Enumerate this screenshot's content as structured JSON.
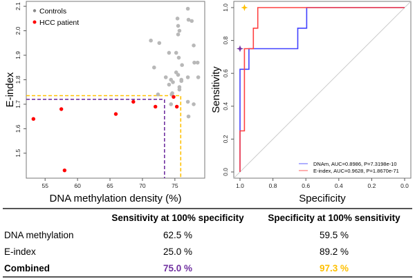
{
  "chart_data": [
    {
      "type": "scatter",
      "xlabel": "DNA methylation density (%)",
      "ylabel": "E-index",
      "xlim": [
        52.1,
        79.6
      ],
      "ylim": [
        1.398,
        2.12
      ],
      "xticks": [
        55,
        60,
        65,
        70,
        75
      ],
      "yticks": [
        1.5,
        1.6,
        1.7,
        1.8,
        1.9,
        2.0,
        2.1
      ],
      "grid": false,
      "legend_position": "top-left",
      "series": [
        {
          "name": "Controls",
          "color": "#b8b8b8",
          "points": [
            [
              71.3,
              1.96
            ],
            [
              72.6,
              1.95
            ],
            [
              74.1,
              1.91
            ],
            [
              75.2,
              1.91
            ],
            [
              75.6,
              1.89
            ],
            [
              77.9,
              1.94
            ],
            [
              76.1,
              1.86
            ],
            [
              78.0,
              1.87
            ],
            [
              78.5,
              1.87
            ],
            [
              71.8,
              1.85
            ],
            [
              73.6,
              1.81
            ],
            [
              75.2,
              1.83
            ],
            [
              75.5,
              1.82
            ],
            [
              77.0,
              1.81
            ],
            [
              78.6,
              1.81
            ],
            [
              74.4,
              1.8
            ],
            [
              74.7,
              1.79
            ],
            [
              76.0,
              1.8
            ],
            [
              76.0,
              1.795
            ],
            [
              74.1,
              1.78
            ],
            [
              75.7,
              1.77
            ],
            [
              75.7,
              1.76
            ],
            [
              72.4,
              1.74
            ],
            [
              74.5,
              1.74
            ],
            [
              74.6,
              1.745
            ],
            [
              74.4,
              1.7
            ],
            [
              77.0,
              1.71
            ],
            [
              77.9,
              1.7
            ],
            [
              77.1,
              1.65
            ],
            [
              77.0,
              2.09
            ],
            [
              75.4,
              2.05
            ],
            [
              77.1,
              2.045
            ],
            [
              77.6,
              2.04
            ],
            [
              75.5,
              2.02
            ],
            [
              75.7,
              2.0
            ],
            [
              75.5,
              1.985
            ]
          ]
        },
        {
          "name": "HCC patient",
          "color": "#ff0000",
          "points": [
            [
              53.2,
              1.64
            ],
            [
              57.5,
              1.68
            ],
            [
              58.0,
              1.43
            ],
            [
              65.9,
              1.66
            ],
            [
              68.6,
              1.71
            ],
            [
              72.0,
              1.69
            ],
            [
              74.8,
              1.73
            ],
            [
              75.3,
              1.69
            ]
          ]
        }
      ],
      "thresholds": [
        {
          "name": "sensitivity cutoff",
          "color": "#7030a0",
          "x": 73.4,
          "y": 1.72
        },
        {
          "name": "specificity cutoff",
          "color": "#ffc000",
          "x": 75.9,
          "y": 1.735
        }
      ]
    },
    {
      "type": "line",
      "xlabel": "Specificity",
      "ylabel": "Sensitivity",
      "xlim": [
        1.0,
        0.0
      ],
      "ylim": [
        0.0,
        1.0
      ],
      "xticks": [
        1.0,
        0.8,
        0.6,
        0.4,
        0.2,
        0.0
      ],
      "yticks": [
        0.0,
        0.2,
        0.4,
        0.6,
        0.8,
        1.0
      ],
      "grid": false,
      "legend_position": "bottom-right",
      "series": [
        {
          "name": "DNAm, AUC=0.8986, P=7.3198e-10",
          "color": "#4040ff",
          "x": [
            1.0,
            1.0,
            0.946,
            0.946,
            0.649,
            0.649,
            0.595,
            0.595,
            0.0
          ],
          "y": [
            0.0,
            0.625,
            0.625,
            0.75,
            0.75,
            0.875,
            0.875,
            1.0,
            1.0
          ]
        },
        {
          "name": "E-index, AUC=0.9628, P=1.8670e-71",
          "color": "#ff4040",
          "x": [
            1.0,
            1.0,
            0.973,
            0.973,
            0.919,
            0.919,
            0.892,
            0.892,
            0.0
          ],
          "y": [
            0.0,
            0.25,
            0.25,
            0.75,
            0.75,
            0.875,
            0.875,
            1.0,
            1.0
          ]
        }
      ],
      "reference_line": {
        "from": [
          1.0,
          0.0
        ],
        "to": [
          0.0,
          1.0
        ],
        "color": "#cccccc"
      },
      "markers": [
        {
          "name": "combined sensitivity point",
          "x": 1.0,
          "y": 0.75,
          "color": "#7030a0",
          "symbol": "star4"
        },
        {
          "name": "combined specificity point",
          "x": 0.973,
          "y": 1.0,
          "color": "#ffc000",
          "symbol": "star4"
        }
      ]
    }
  ],
  "table": {
    "headers": [
      "",
      "Sensitivity at 100% specificity",
      "Specificity at 100% sensitivity"
    ],
    "rows": [
      {
        "label": "DNA methylation",
        "sens": "62.5 %",
        "spec": "59.5 %",
        "bold": false
      },
      {
        "label": "E-index",
        "sens": "25.0 %",
        "spec": "89.2 %",
        "bold": false
      },
      {
        "label": "Combined",
        "sens": "75.0 %",
        "spec": "97.3 %",
        "bold": true,
        "sens_color": "#7030a0",
        "spec_color": "#ffc000"
      }
    ]
  }
}
